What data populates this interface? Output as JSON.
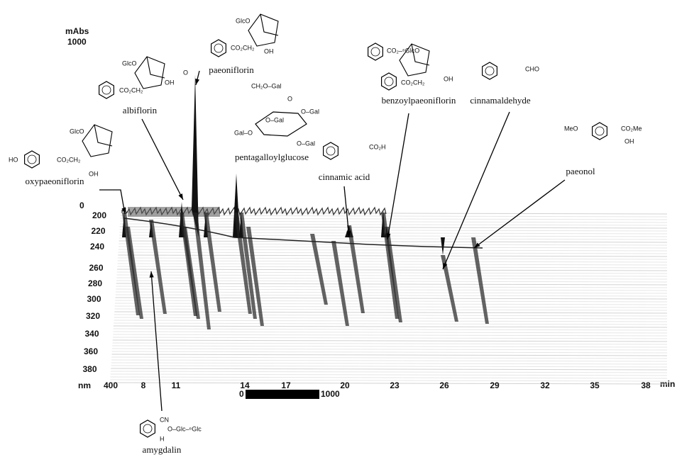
{
  "y_axis": {
    "unit": "mAbs",
    "max": 1000,
    "zero": 0,
    "wavelength_unit": "nm",
    "wavelengths": [
      200,
      220,
      240,
      260,
      280,
      300,
      320,
      340,
      360,
      380,
      400
    ]
  },
  "x_axis": {
    "unit": "min",
    "times": [
      8,
      11,
      14,
      17,
      20,
      23,
      26,
      29,
      32,
      35,
      38
    ]
  },
  "scale_bar": {
    "start": 0,
    "end": 1000
  },
  "compounds": [
    {
      "name": "oxypaeoniflorin",
      "structure": [
        "GlcO",
        "HO",
        "CO₂CH₂",
        "OH"
      ]
    },
    {
      "name": "albiflorin",
      "structure": [
        "GlcO",
        "CO₂CH₂",
        "OH",
        "O"
      ]
    },
    {
      "name": "paeoniflorin",
      "structure": [
        "GlcO",
        "CO₂CH₂",
        "OH"
      ]
    },
    {
      "name": "pentagalloylglucose",
      "structure": [
        "CH₂O–Gal",
        "O–Gal",
        "Gal–O",
        "O–Gal",
        "O",
        "O–Gal"
      ]
    },
    {
      "name": "cinnamic acid",
      "structure": [
        "CO₂H"
      ]
    },
    {
      "name": "benzoylpaeoniflorin",
      "structure": [
        "CO₂–⁶GlcO",
        "CO₂CH₂",
        "OH"
      ]
    },
    {
      "name": "cinnamaldehyde",
      "structure": [
        "CHO"
      ]
    },
    {
      "name": "paeonol",
      "structure": [
        "MeO",
        "CO₂Me",
        "OH"
      ]
    },
    {
      "name": "amygdalin",
      "structure": [
        "CN",
        "O–Glc–⁶Glc",
        "H"
      ]
    }
  ]
}
